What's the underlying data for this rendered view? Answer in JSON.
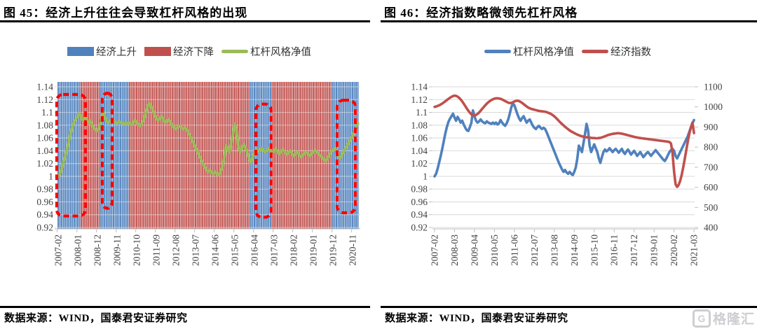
{
  "page": {
    "background": "#ffffff",
    "up_blue": "#4f81bd",
    "down_red": "#c0504d",
    "nav_green": "#9bbb59",
    "highlight_red": "#fe0000",
    "grid_gray": "#d9d9d9",
    "axis_text_gray": "#404040"
  },
  "figure45": {
    "title": "图 45：经济上升往往会导致杠杆风格的出现",
    "source": "数据来源：WIND，国泰君安证券研究",
    "legend": [
      {
        "label": "经济上升",
        "color": "#4f81bd",
        "swatch": "box"
      },
      {
        "label": "经济下降",
        "color": "#c0504d",
        "swatch": "box"
      },
      {
        "label": "杠杆风格净值",
        "color": "#9bbb59",
        "swatch": "line"
      }
    ],
    "chart_data": {
      "type": "bar",
      "title": "经济上升往往会导致杠杆风格的出现",
      "x_start": "2007-02",
      "x_tick_interval_months": 11,
      "x_tick_labels": [
        "2007-02",
        "2008-01",
        "2008-12",
        "2009-11",
        "2010-10",
        "2011-09",
        "2012-08",
        "2013-07",
        "2014-06",
        "2015-05",
        "2016-04",
        "2017-03",
        "2018-02",
        "2019-01",
        "2019-12",
        "2020-11"
      ],
      "ylim": [
        0.92,
        1.14
      ],
      "y_tick_labels": [
        "1.14",
        "1.12",
        "1.1",
        "1.08",
        "1.06",
        "1.04",
        "1.02",
        "1",
        "0.98",
        "0.96",
        "0.94",
        "0.92"
      ],
      "grid": true,
      "regime_bands": [
        {
          "state": "经济上升",
          "color": "#4f81bd",
          "from_month": 0,
          "to_month": 12
        },
        {
          "state": "经济下降",
          "color": "#c0504d",
          "from_month": 13,
          "to_month": 23
        },
        {
          "state": "经济上升",
          "color": "#4f81bd",
          "from_month": 24,
          "to_month": 39
        },
        {
          "state": "经济下降",
          "color": "#c0504d",
          "from_month": 40,
          "to_month": 107
        },
        {
          "state": "经济上升",
          "color": "#4f81bd",
          "from_month": 108,
          "to_month": 119
        },
        {
          "state": "经济下降",
          "color": "#c0504d",
          "from_month": 120,
          "to_month": 153
        },
        {
          "state": "经济上升",
          "color": "#4f81bd",
          "from_month": 154,
          "to_month": 168
        }
      ],
      "highlight_boxes": [
        {
          "from_month": -0.8,
          "to_month": 15.3,
          "top": 1.128,
          "bottom": 0.938
        },
        {
          "from_month": 24.7,
          "to_month": 30.3,
          "top": 1.13,
          "bottom": 0.95
        },
        {
          "from_month": 110.8,
          "to_month": 119.4,
          "top": 1.113,
          "bottom": 0.936
        },
        {
          "from_month": 156.4,
          "to_month": 166.6,
          "top": 1.119,
          "bottom": 0.943
        }
      ],
      "line_series": {
        "name": "杠杆风格净值",
        "color": "#9bbb59",
        "values": [
          1.0,
          1.004,
          1.012,
          1.022,
          1.032,
          1.043,
          1.055,
          1.067,
          1.077,
          1.085,
          1.09,
          1.094,
          1.098,
          1.092,
          1.087,
          1.093,
          1.089,
          1.084,
          1.087,
          1.081,
          1.076,
          1.072,
          1.071,
          1.077,
          1.084,
          1.103,
          1.094,
          1.087,
          1.084,
          1.086,
          1.089,
          1.086,
          1.084,
          1.083,
          1.086,
          1.084,
          1.083,
          1.082,
          1.084,
          1.082,
          1.084,
          1.081,
          1.083,
          1.088,
          1.084,
          1.081,
          1.079,
          1.083,
          1.089,
          1.098,
          1.108,
          1.114,
          1.111,
          1.104,
          1.097,
          1.091,
          1.087,
          1.091,
          1.094,
          1.089,
          1.084,
          1.087,
          1.089,
          1.084,
          1.079,
          1.076,
          1.074,
          1.077,
          1.079,
          1.076,
          1.074,
          1.076,
          1.074,
          1.069,
          1.063,
          1.057,
          1.051,
          1.045,
          1.039,
          1.033,
          1.027,
          1.021,
          1.016,
          1.011,
          1.007,
          1.01,
          1.006,
          1.004,
          1.007,
          1.004,
          1.002,
          1.007,
          1.014,
          1.028,
          1.048,
          1.043,
          1.038,
          1.052,
          1.066,
          1.082,
          1.072,
          1.048,
          1.038,
          1.044,
          1.05,
          1.044,
          1.038,
          1.028,
          1.021,
          1.03,
          1.038,
          1.042,
          1.039,
          1.041,
          1.044,
          1.041,
          1.038,
          1.041,
          1.043,
          1.04,
          1.037,
          1.04,
          1.043,
          1.038,
          1.035,
          1.039,
          1.042,
          1.038,
          1.034,
          1.037,
          1.04,
          1.036,
          1.032,
          1.035,
          1.038,
          1.034,
          1.03,
          1.033,
          1.036,
          1.038,
          1.035,
          1.032,
          1.035,
          1.038,
          1.041,
          1.038,
          1.035,
          1.032,
          1.029,
          1.026,
          1.024,
          1.028,
          1.033,
          1.038,
          1.041,
          1.043,
          1.04,
          1.032,
          1.028,
          1.033,
          1.038,
          1.043,
          1.048,
          1.053,
          1.058,
          1.063,
          1.07,
          1.077,
          1.083
        ]
      }
    }
  },
  "figure46": {
    "title": "图 46：经济指数略微领先杠杆风格",
    "source": "数据来源：WIND，国泰君安证券研究",
    "legend": [
      {
        "label": "杠杆风格净值",
        "color": "#4f81bd",
        "swatch": "line"
      },
      {
        "label": "经济指数",
        "color": "#c0504d",
        "swatch": "line"
      }
    ],
    "chart_data": {
      "type": "line",
      "title": "经济指数略微领先杠杆风格",
      "x_start": "2007-02",
      "x_tick_interval_months": 13,
      "x_tick_labels": [
        "2007-02",
        "2008-03",
        "2009-04",
        "2010-05",
        "2011-06",
        "2012-07",
        "2013-08",
        "2014-09",
        "2015-10",
        "2016-11",
        "2017-12",
        "2019-01",
        "2020-02",
        "2021-03"
      ],
      "ylim_left": [
        0.92,
        1.14
      ],
      "y_tick_labels_left": [
        "1.14",
        "1.12",
        "1.1",
        "1.08",
        "1.06",
        "1.04",
        "1.02",
        "1",
        "0.98",
        "0.96",
        "0.94",
        "0.92"
      ],
      "ylim_right": [
        400,
        1100
      ],
      "y_tick_labels_right": [
        "1100",
        "1000",
        "900",
        "800",
        "700",
        "600",
        "500",
        "400"
      ],
      "grid": true,
      "series": [
        {
          "name": "杠杆风格净值",
          "axis": "left",
          "color": "#4f81bd",
          "values": [
            1.0,
            1.004,
            1.012,
            1.022,
            1.032,
            1.043,
            1.055,
            1.067,
            1.077,
            1.085,
            1.09,
            1.094,
            1.098,
            1.092,
            1.087,
            1.093,
            1.089,
            1.084,
            1.087,
            1.081,
            1.076,
            1.072,
            1.071,
            1.077,
            1.084,
            1.103,
            1.094,
            1.087,
            1.084,
            1.086,
            1.089,
            1.086,
            1.084,
            1.083,
            1.086,
            1.084,
            1.083,
            1.082,
            1.084,
            1.082,
            1.084,
            1.081,
            1.083,
            1.088,
            1.084,
            1.081,
            1.079,
            1.083,
            1.089,
            1.098,
            1.108,
            1.114,
            1.111,
            1.104,
            1.097,
            1.091,
            1.087,
            1.091,
            1.094,
            1.089,
            1.084,
            1.087,
            1.089,
            1.084,
            1.079,
            1.076,
            1.074,
            1.077,
            1.079,
            1.076,
            1.074,
            1.076,
            1.074,
            1.069,
            1.063,
            1.057,
            1.051,
            1.045,
            1.039,
            1.033,
            1.027,
            1.021,
            1.016,
            1.011,
            1.007,
            1.01,
            1.006,
            1.004,
            1.007,
            1.004,
            1.002,
            1.007,
            1.014,
            1.028,
            1.048,
            1.043,
            1.038,
            1.052,
            1.066,
            1.082,
            1.072,
            1.048,
            1.038,
            1.044,
            1.05,
            1.044,
            1.038,
            1.028,
            1.021,
            1.03,
            1.038,
            1.042,
            1.039,
            1.041,
            1.044,
            1.041,
            1.038,
            1.041,
            1.043,
            1.04,
            1.037,
            1.04,
            1.043,
            1.038,
            1.035,
            1.039,
            1.042,
            1.038,
            1.034,
            1.037,
            1.04,
            1.036,
            1.032,
            1.035,
            1.038,
            1.034,
            1.03,
            1.033,
            1.036,
            1.038,
            1.035,
            1.032,
            1.035,
            1.038,
            1.041,
            1.038,
            1.035,
            1.032,
            1.029,
            1.026,
            1.024,
            1.028,
            1.033,
            1.038,
            1.041,
            1.043,
            1.04,
            1.032,
            1.028,
            1.033,
            1.038,
            1.043,
            1.048,
            1.053,
            1.058,
            1.063,
            1.07,
            1.077,
            1.083,
            1.088
          ]
        },
        {
          "name": "经济指数",
          "axis": "right",
          "color": "#c0504d",
          "values": [
            1000,
            1002,
            1005,
            1008,
            1012,
            1017,
            1022,
            1028,
            1034,
            1040,
            1045,
            1050,
            1054,
            1056,
            1055,
            1051,
            1045,
            1037,
            1027,
            1016,
            1004,
            992,
            981,
            971,
            963,
            958,
            957,
            960,
            965,
            972,
            981,
            990,
            999,
            1008,
            1016,
            1023,
            1029,
            1034,
            1038,
            1041,
            1043,
            1043,
            1042,
            1040,
            1037,
            1033,
            1029,
            1025,
            1021,
            1019,
            1020,
            1023,
            1027,
            1030,
            1031,
            1029,
            1025,
            1020,
            1014,
            1008,
            1002,
            997,
            993,
            990,
            988,
            986,
            984,
            982,
            980,
            979,
            978,
            977,
            976,
            974,
            971,
            968,
            964,
            959,
            953,
            946,
            938,
            930,
            922,
            915,
            908,
            901,
            895,
            889,
            883,
            878,
            874,
            870,
            866,
            862,
            859,
            856,
            854,
            852,
            850,
            849,
            848,
            847,
            846,
            845,
            845,
            844,
            844,
            845,
            846,
            848,
            851,
            854,
            857,
            860,
            862,
            864,
            866,
            867,
            868,
            869,
            869,
            868,
            867,
            865,
            863,
            861,
            859,
            857,
            855,
            853,
            851,
            849,
            848,
            846,
            845,
            844,
            843,
            842,
            841,
            840,
            839,
            838,
            837,
            836,
            835,
            834,
            833,
            832,
            831,
            830,
            829,
            828,
            827,
            825,
            818,
            772,
            680,
            615,
            602,
            612,
            632,
            662,
            700,
            742,
            786,
            830,
            868,
            898,
            922,
            870
          ]
        }
      ]
    }
  },
  "footer": {
    "logo_letter": "G",
    "logo_text": "格隆汇"
  }
}
